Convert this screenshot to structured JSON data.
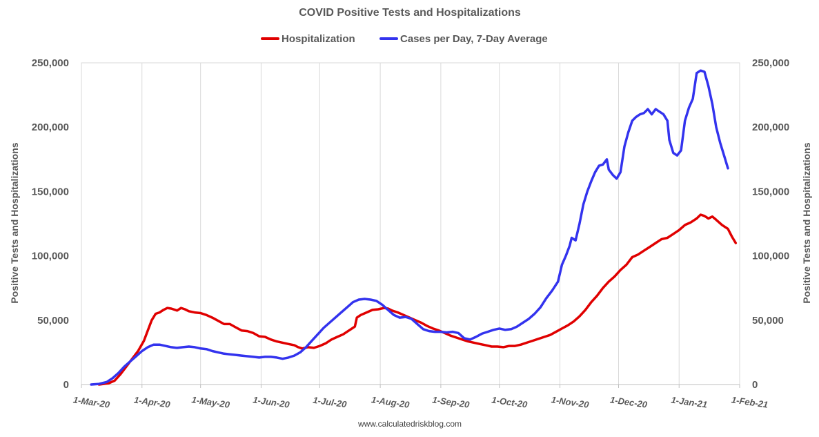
{
  "chart_data": {
    "type": "line",
    "title": "COVID Positive Tests and Hospitalizations",
    "ylabel_left": "Positive Tests and Hospitalizations",
    "ylabel_right": "Positive Tests and Hospitalizations",
    "source": "www.calculatedriskblog.com",
    "ylim": [
      0,
      250000
    ],
    "yticks": [
      "0",
      "50,000",
      "100,000",
      "150,000",
      "200,000",
      "250,000"
    ],
    "x_start": "2020-03-01",
    "x_end": "2021-02-01",
    "xticks": [
      "1-Mar-20",
      "1-Apr-20",
      "1-May-20",
      "1-Jun-20",
      "1-Jul-20",
      "1-Aug-20",
      "1-Sep-20",
      "1-Oct-20",
      "1-Nov-20",
      "1-Dec-20",
      "1-Jan-21",
      "1-Feb-21"
    ],
    "xtick_dates": [
      "2020-03-01",
      "2020-04-01",
      "2020-05-01",
      "2020-06-01",
      "2020-07-01",
      "2020-08-01",
      "2020-09-01",
      "2020-10-01",
      "2020-11-01",
      "2020-12-01",
      "2021-01-01",
      "2021-02-01"
    ],
    "legend_position": "top-center",
    "grid": "vertical",
    "series": [
      {
        "name": "Hospitalization",
        "color": "#e00000",
        "points": [
          [
            "2020-03-10",
            0
          ],
          [
            "2020-03-15",
            1000
          ],
          [
            "2020-03-18",
            3000
          ],
          [
            "2020-03-21",
            8000
          ],
          [
            "2020-03-24",
            14000
          ],
          [
            "2020-03-27",
            20000
          ],
          [
            "2020-03-30",
            26000
          ],
          [
            "2020-04-02",
            34000
          ],
          [
            "2020-04-04",
            42000
          ],
          [
            "2020-04-06",
            50000
          ],
          [
            "2020-04-08",
            55000
          ],
          [
            "2020-04-10",
            56000
          ],
          [
            "2020-04-12",
            58000
          ],
          [
            "2020-04-14",
            59500
          ],
          [
            "2020-04-16",
            59000
          ],
          [
            "2020-04-19",
            57500
          ],
          [
            "2020-04-21",
            59500
          ],
          [
            "2020-04-23",
            58500
          ],
          [
            "2020-04-25",
            57000
          ],
          [
            "2020-04-28",
            56000
          ],
          [
            "2020-05-01",
            55500
          ],
          [
            "2020-05-04",
            54000
          ],
          [
            "2020-05-07",
            52000
          ],
          [
            "2020-05-10",
            49500
          ],
          [
            "2020-05-13",
            47000
          ],
          [
            "2020-05-16",
            47000
          ],
          [
            "2020-05-19",
            44500
          ],
          [
            "2020-05-22",
            42000
          ],
          [
            "2020-05-25",
            41500
          ],
          [
            "2020-05-28",
            40000
          ],
          [
            "2020-05-31",
            37500
          ],
          [
            "2020-06-03",
            37000
          ],
          [
            "2020-06-06",
            35000
          ],
          [
            "2020-06-09",
            33500
          ],
          [
            "2020-06-12",
            32500
          ],
          [
            "2020-06-15",
            31500
          ],
          [
            "2020-06-18",
            30500
          ],
          [
            "2020-06-20",
            29000
          ],
          [
            "2020-06-22",
            28000
          ],
          [
            "2020-06-25",
            29000
          ],
          [
            "2020-06-28",
            28500
          ],
          [
            "2020-07-01",
            30000
          ],
          [
            "2020-07-04",
            32000
          ],
          [
            "2020-07-07",
            35000
          ],
          [
            "2020-07-10",
            37000
          ],
          [
            "2020-07-13",
            39000
          ],
          [
            "2020-07-16",
            42000
          ],
          [
            "2020-07-19",
            45000
          ],
          [
            "2020-07-20",
            52000
          ],
          [
            "2020-07-22",
            54000
          ],
          [
            "2020-07-25",
            56000
          ],
          [
            "2020-07-28",
            58000
          ],
          [
            "2020-07-31",
            58500
          ],
          [
            "2020-08-03",
            59500
          ],
          [
            "2020-08-05",
            59000
          ],
          [
            "2020-08-07",
            57500
          ],
          [
            "2020-08-10",
            56000
          ],
          [
            "2020-08-13",
            54000
          ],
          [
            "2020-08-16",
            52000
          ],
          [
            "2020-08-19",
            50000
          ],
          [
            "2020-08-22",
            48000
          ],
          [
            "2020-08-25",
            45500
          ],
          [
            "2020-08-28",
            43500
          ],
          [
            "2020-08-31",
            42000
          ],
          [
            "2020-09-03",
            40000
          ],
          [
            "2020-09-06",
            38000
          ],
          [
            "2020-09-09",
            36500
          ],
          [
            "2020-09-12",
            35000
          ],
          [
            "2020-09-15",
            33500
          ],
          [
            "2020-09-18",
            32500
          ],
          [
            "2020-09-21",
            31500
          ],
          [
            "2020-09-24",
            30500
          ],
          [
            "2020-09-27",
            29500
          ],
          [
            "2020-09-30",
            29500
          ],
          [
            "2020-10-03",
            29000
          ],
          [
            "2020-10-06",
            30000
          ],
          [
            "2020-10-09",
            30000
          ],
          [
            "2020-10-12",
            31000
          ],
          [
            "2020-10-15",
            32500
          ],
          [
            "2020-10-18",
            34000
          ],
          [
            "2020-10-21",
            35500
          ],
          [
            "2020-10-24",
            37000
          ],
          [
            "2020-10-27",
            38500
          ],
          [
            "2020-10-30",
            41000
          ],
          [
            "2020-11-02",
            43500
          ],
          [
            "2020-11-05",
            46000
          ],
          [
            "2020-11-08",
            49000
          ],
          [
            "2020-11-11",
            53000
          ],
          [
            "2020-11-14",
            58000
          ],
          [
            "2020-11-17",
            64000
          ],
          [
            "2020-11-20",
            69000
          ],
          [
            "2020-11-23",
            75000
          ],
          [
            "2020-11-26",
            80000
          ],
          [
            "2020-11-29",
            84000
          ],
          [
            "2020-12-02",
            89000
          ],
          [
            "2020-12-05",
            93000
          ],
          [
            "2020-12-08",
            99000
          ],
          [
            "2020-12-11",
            101000
          ],
          [
            "2020-12-14",
            104000
          ],
          [
            "2020-12-17",
            107000
          ],
          [
            "2020-12-20",
            110000
          ],
          [
            "2020-12-23",
            113000
          ],
          [
            "2020-12-26",
            114000
          ],
          [
            "2020-12-29",
            117000
          ],
          [
            "2021-01-01",
            120000
          ],
          [
            "2021-01-04",
            124000
          ],
          [
            "2021-01-07",
            126000
          ],
          [
            "2021-01-10",
            129000
          ],
          [
            "2021-01-12",
            132000
          ],
          [
            "2021-01-14",
            131000
          ],
          [
            "2021-01-16",
            129000
          ],
          [
            "2021-01-18",
            130500
          ],
          [
            "2021-01-20",
            128000
          ],
          [
            "2021-01-23",
            124000
          ],
          [
            "2021-01-26",
            121000
          ],
          [
            "2021-01-28",
            115000
          ],
          [
            "2021-01-30",
            110000
          ]
        ]
      },
      {
        "name": "Cases per Day, 7-Day Average",
        "color": "#3333ee",
        "points": [
          [
            "2020-03-06",
            0
          ],
          [
            "2020-03-10",
            500
          ],
          [
            "2020-03-14",
            2000
          ],
          [
            "2020-03-17",
            5000
          ],
          [
            "2020-03-20",
            9000
          ],
          [
            "2020-03-23",
            14000
          ],
          [
            "2020-03-26",
            18000
          ],
          [
            "2020-03-29",
            22000
          ],
          [
            "2020-04-01",
            26000
          ],
          [
            "2020-04-04",
            29000
          ],
          [
            "2020-04-07",
            31000
          ],
          [
            "2020-04-10",
            31000
          ],
          [
            "2020-04-13",
            30000
          ],
          [
            "2020-04-16",
            29000
          ],
          [
            "2020-04-19",
            28500
          ],
          [
            "2020-04-22",
            29000
          ],
          [
            "2020-04-25",
            29500
          ],
          [
            "2020-04-28",
            29000
          ],
          [
            "2020-05-01",
            28000
          ],
          [
            "2020-05-04",
            27500
          ],
          [
            "2020-05-07",
            26000
          ],
          [
            "2020-05-10",
            25000
          ],
          [
            "2020-05-13",
            24000
          ],
          [
            "2020-05-16",
            23500
          ],
          [
            "2020-05-19",
            23000
          ],
          [
            "2020-05-22",
            22500
          ],
          [
            "2020-05-25",
            22000
          ],
          [
            "2020-05-28",
            21500
          ],
          [
            "2020-05-31",
            21000
          ],
          [
            "2020-06-03",
            21500
          ],
          [
            "2020-06-06",
            21500
          ],
          [
            "2020-06-09",
            21000
          ],
          [
            "2020-06-12",
            20000
          ],
          [
            "2020-06-15",
            21000
          ],
          [
            "2020-06-18",
            22500
          ],
          [
            "2020-06-21",
            25000
          ],
          [
            "2020-06-24",
            29000
          ],
          [
            "2020-06-27",
            34000
          ],
          [
            "2020-06-30",
            39000
          ],
          [
            "2020-07-03",
            44000
          ],
          [
            "2020-07-06",
            48000
          ],
          [
            "2020-07-09",
            52000
          ],
          [
            "2020-07-12",
            56000
          ],
          [
            "2020-07-15",
            60000
          ],
          [
            "2020-07-18",
            64000
          ],
          [
            "2020-07-21",
            66000
          ],
          [
            "2020-07-24",
            66500
          ],
          [
            "2020-07-27",
            66000
          ],
          [
            "2020-07-30",
            65000
          ],
          [
            "2020-08-02",
            62000
          ],
          [
            "2020-08-05",
            58000
          ],
          [
            "2020-08-08",
            54000
          ],
          [
            "2020-08-11",
            52000
          ],
          [
            "2020-08-14",
            52500
          ],
          [
            "2020-08-17",
            51000
          ],
          [
            "2020-08-20",
            47000
          ],
          [
            "2020-08-23",
            43000
          ],
          [
            "2020-08-26",
            41500
          ],
          [
            "2020-08-29",
            41000
          ],
          [
            "2020-09-01",
            41000
          ],
          [
            "2020-09-04",
            40500
          ],
          [
            "2020-09-07",
            41000
          ],
          [
            "2020-09-10",
            40000
          ],
          [
            "2020-09-13",
            36000
          ],
          [
            "2020-09-16",
            35000
          ],
          [
            "2020-09-19",
            37000
          ],
          [
            "2020-09-22",
            39500
          ],
          [
            "2020-09-25",
            41000
          ],
          [
            "2020-09-28",
            42500
          ],
          [
            "2020-10-01",
            43500
          ],
          [
            "2020-10-04",
            42500
          ],
          [
            "2020-10-07",
            43000
          ],
          [
            "2020-10-10",
            45000
          ],
          [
            "2020-10-13",
            48000
          ],
          [
            "2020-10-16",
            51000
          ],
          [
            "2020-10-19",
            55000
          ],
          [
            "2020-10-22",
            60000
          ],
          [
            "2020-10-25",
            67000
          ],
          [
            "2020-10-28",
            73000
          ],
          [
            "2020-10-31",
            80000
          ],
          [
            "2020-11-02",
            93000
          ],
          [
            "2020-11-04",
            100000
          ],
          [
            "2020-11-06",
            108000
          ],
          [
            "2020-11-07",
            114000
          ],
          [
            "2020-11-09",
            112000
          ],
          [
            "2020-11-11",
            125000
          ],
          [
            "2020-11-13",
            140000
          ],
          [
            "2020-11-15",
            150000
          ],
          [
            "2020-11-17",
            158000
          ],
          [
            "2020-11-19",
            165000
          ],
          [
            "2020-11-21",
            170000
          ],
          [
            "2020-11-23",
            171000
          ],
          [
            "2020-11-25",
            175000
          ],
          [
            "2020-11-26",
            167000
          ],
          [
            "2020-11-28",
            163000
          ],
          [
            "2020-11-30",
            160000
          ],
          [
            "2020-12-02",
            165000
          ],
          [
            "2020-12-04",
            185000
          ],
          [
            "2020-12-06",
            196000
          ],
          [
            "2020-12-08",
            205000
          ],
          [
            "2020-12-10",
            208000
          ],
          [
            "2020-12-12",
            210000
          ],
          [
            "2020-12-14",
            211000
          ],
          [
            "2020-12-16",
            214000
          ],
          [
            "2020-12-18",
            210000
          ],
          [
            "2020-12-20",
            214000
          ],
          [
            "2020-12-22",
            212000
          ],
          [
            "2020-12-24",
            210000
          ],
          [
            "2020-12-26",
            205000
          ],
          [
            "2020-12-27",
            190000
          ],
          [
            "2020-12-29",
            180000
          ],
          [
            "2020-12-31",
            178000
          ],
          [
            "2021-01-02",
            182000
          ],
          [
            "2021-01-04",
            205000
          ],
          [
            "2021-01-06",
            215000
          ],
          [
            "2021-01-08",
            222000
          ],
          [
            "2021-01-10",
            242000
          ],
          [
            "2021-01-12",
            244000
          ],
          [
            "2021-01-14",
            243000
          ],
          [
            "2021-01-16",
            232000
          ],
          [
            "2021-01-18",
            218000
          ],
          [
            "2021-01-20",
            200000
          ],
          [
            "2021-01-22",
            188000
          ],
          [
            "2021-01-24",
            178000
          ],
          [
            "2021-01-26",
            168000
          ]
        ]
      }
    ]
  }
}
